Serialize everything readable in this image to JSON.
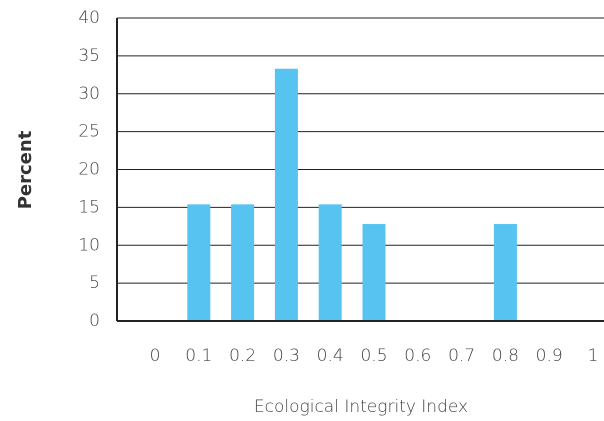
{
  "chart_data": {
    "type": "bar",
    "x_label": "Ecological Integrity Index",
    "y_label": "Percent",
    "categories": [
      "0",
      "0.1",
      "0.2",
      "0.3",
      "0.4",
      "0.5",
      "0.6",
      "0.7",
      "0.8",
      "0.9",
      "1"
    ],
    "values": [
      0,
      15.4,
      15.4,
      33.3,
      15.4,
      12.8,
      0,
      0,
      12.8,
      0,
      0
    ],
    "color": "#56c3f0",
    "ylim": [
      0,
      40
    ],
    "yticks": [
      0,
      5,
      10,
      15,
      20,
      25,
      30,
      35,
      40
    ],
    "grid": true
  }
}
